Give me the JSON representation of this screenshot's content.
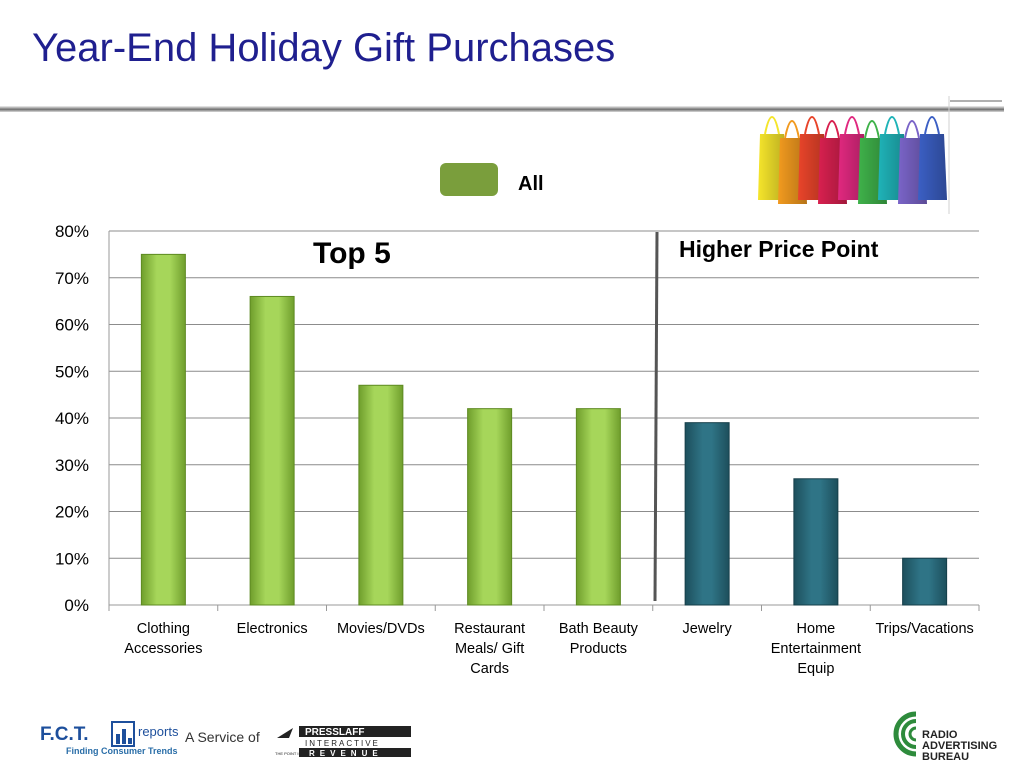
{
  "page": {
    "title": "Year-End Holiday Gift Purchases"
  },
  "chart_data": {
    "type": "bar",
    "categories": [
      [
        "Clothing",
        "Accessories"
      ],
      [
        "Electronics"
      ],
      [
        "Movies/DVDs"
      ],
      [
        "Restaurant",
        "Meals/ Gift",
        "Cards"
      ],
      [
        "Bath Beauty",
        "Products"
      ],
      [
        "Jewelry"
      ],
      [
        "Home",
        "Entertainment",
        "Equip"
      ],
      [
        "Trips/Vacations"
      ]
    ],
    "series": [
      {
        "name": "All",
        "values": [
          75,
          66,
          47,
          42,
          42,
          39,
          27,
          10
        ]
      }
    ],
    "ylim": [
      0,
      80
    ],
    "yticks": [
      "0%",
      "10%",
      "20%",
      "30%",
      "40%",
      "50%",
      "60%",
      "70%",
      "80%"
    ],
    "grid": true,
    "legend": "top-center",
    "annotations": [
      "Top 5",
      "Higher Price Point"
    ],
    "colors": {
      "top5": "#8cc63f",
      "higher": "#2a6b7c"
    }
  },
  "footer": {
    "service_text": "A Service of",
    "fct_text": "F.C.T.",
    "fct_reports": "reports",
    "fct_tagline": "Finding Consumer Trends",
    "presslaff_top": "PRESSLAFF",
    "presslaff_mid": "INTERACTIVE",
    "presslaff_prefix": "THE POINT IS",
    "presslaff_bottom": "REVENUE",
    "rab_lines": [
      "RADIO",
      "ADVERTISING",
      "BUREAU"
    ]
  }
}
